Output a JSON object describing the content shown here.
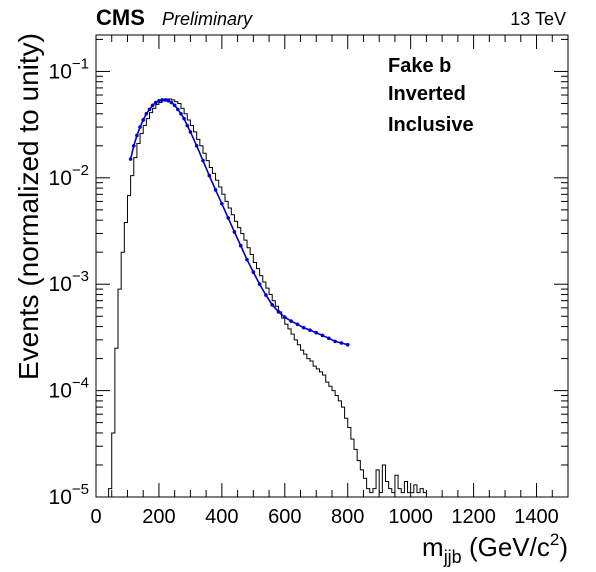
{
  "header": {
    "experiment": "CMS",
    "status": "Preliminary",
    "energy": "13 TeV"
  },
  "annotations": [
    "Fake b",
    "Inverted",
    "Inclusive"
  ],
  "chart_data": {
    "type": "histogram",
    "xlabel_main": "m",
    "xlabel_sub": "jjb",
    "xlabel_unit": "(GeV/c",
    "xlabel_sup": "2",
    "xlabel_close": ")",
    "ylabel": "Events (normalized to unity)",
    "xlim": [
      0,
      1500
    ],
    "ylim": [
      1e-05,
      0.22
    ],
    "log_y": true,
    "x_ticks": [
      0,
      200,
      400,
      600,
      800,
      1000,
      1200,
      1400
    ],
    "y_tick_exponents": [
      -5,
      -4,
      -3,
      -2,
      -1
    ],
    "y_tick_base": "10",
    "y_tick_signs": "−",
    "grid": false,
    "histogram_color": "#000000",
    "fit_color": "#0000cc",
    "histogram": {
      "bin_width": 10,
      "start": 40,
      "values": [
        1.2e-05,
        4e-05,
        0.00025,
        0.0009,
        0.002,
        0.0038,
        0.0068,
        0.0105,
        0.0155,
        0.021,
        0.026,
        0.031,
        0.036,
        0.041,
        0.045,
        0.049,
        0.051,
        0.053,
        0.055,
        0.055,
        0.054,
        0.052,
        0.05,
        0.045,
        0.04,
        0.035,
        0.031,
        0.027,
        0.023,
        0.02,
        0.017,
        0.0145,
        0.0125,
        0.011,
        0.0095,
        0.0082,
        0.007,
        0.006,
        0.0052,
        0.0045,
        0.0039,
        0.0034,
        0.003,
        0.0026,
        0.0022,
        0.0019,
        0.0016,
        0.0014,
        0.0012,
        0.00105,
        0.00092,
        0.0008,
        0.0007,
        0.00062,
        0.00055,
        0.00048,
        0.00042,
        0.00038,
        0.00034,
        0.0003,
        0.00027,
        0.00024,
        0.00022,
        0.0002,
        0.00019,
        0.00017,
        0.00016,
        0.00015,
        0.00014,
        0.00012,
        0.00011,
        0.0001,
        9e-05,
        8e-05,
        7e-05,
        5.5e-05,
        4.5e-05,
        3.5e-05,
        2.8e-05,
        2.2e-05,
        1.8e-05,
        1.5e-05,
        1.2e-05,
        1.1e-05,
        1.2e-05,
        1.8e-05,
        1.1e-05,
        2e-05,
        1.4e-05,
        1.2e-05,
        1.1e-05,
        1.6e-05,
        1.2e-05,
        1.1e-05,
        1.4e-05,
        1.1e-05,
        1.1e-05,
        1.3e-05,
        1.1e-05,
        1.2e-05,
        1.1e-05
      ]
    },
    "fit": {
      "x": [
        110,
        120,
        130,
        140,
        150,
        160,
        170,
        180,
        190,
        200,
        210,
        220,
        230,
        240,
        250,
        260,
        270,
        280,
        290,
        300,
        320,
        340,
        360,
        380,
        400,
        420,
        440,
        460,
        480,
        500,
        520,
        540,
        560,
        580,
        600,
        620,
        640,
        660,
        680,
        700,
        720,
        740,
        760,
        780,
        800
      ],
      "y": [
        0.015,
        0.02,
        0.025,
        0.03,
        0.035,
        0.04,
        0.044,
        0.048,
        0.051,
        0.053,
        0.054,
        0.054,
        0.053,
        0.051,
        0.048,
        0.044,
        0.04,
        0.036,
        0.031,
        0.027,
        0.02,
        0.0145,
        0.0105,
        0.0077,
        0.0057,
        0.0042,
        0.0031,
        0.0023,
        0.0017,
        0.0013,
        0.001,
        0.00079,
        0.00064,
        0.00055,
        0.00049,
        0.00045,
        0.00042,
        0.00039,
        0.00037,
        0.00035,
        0.00033,
        0.00031,
        0.00029,
        0.00028,
        0.00027
      ]
    }
  }
}
